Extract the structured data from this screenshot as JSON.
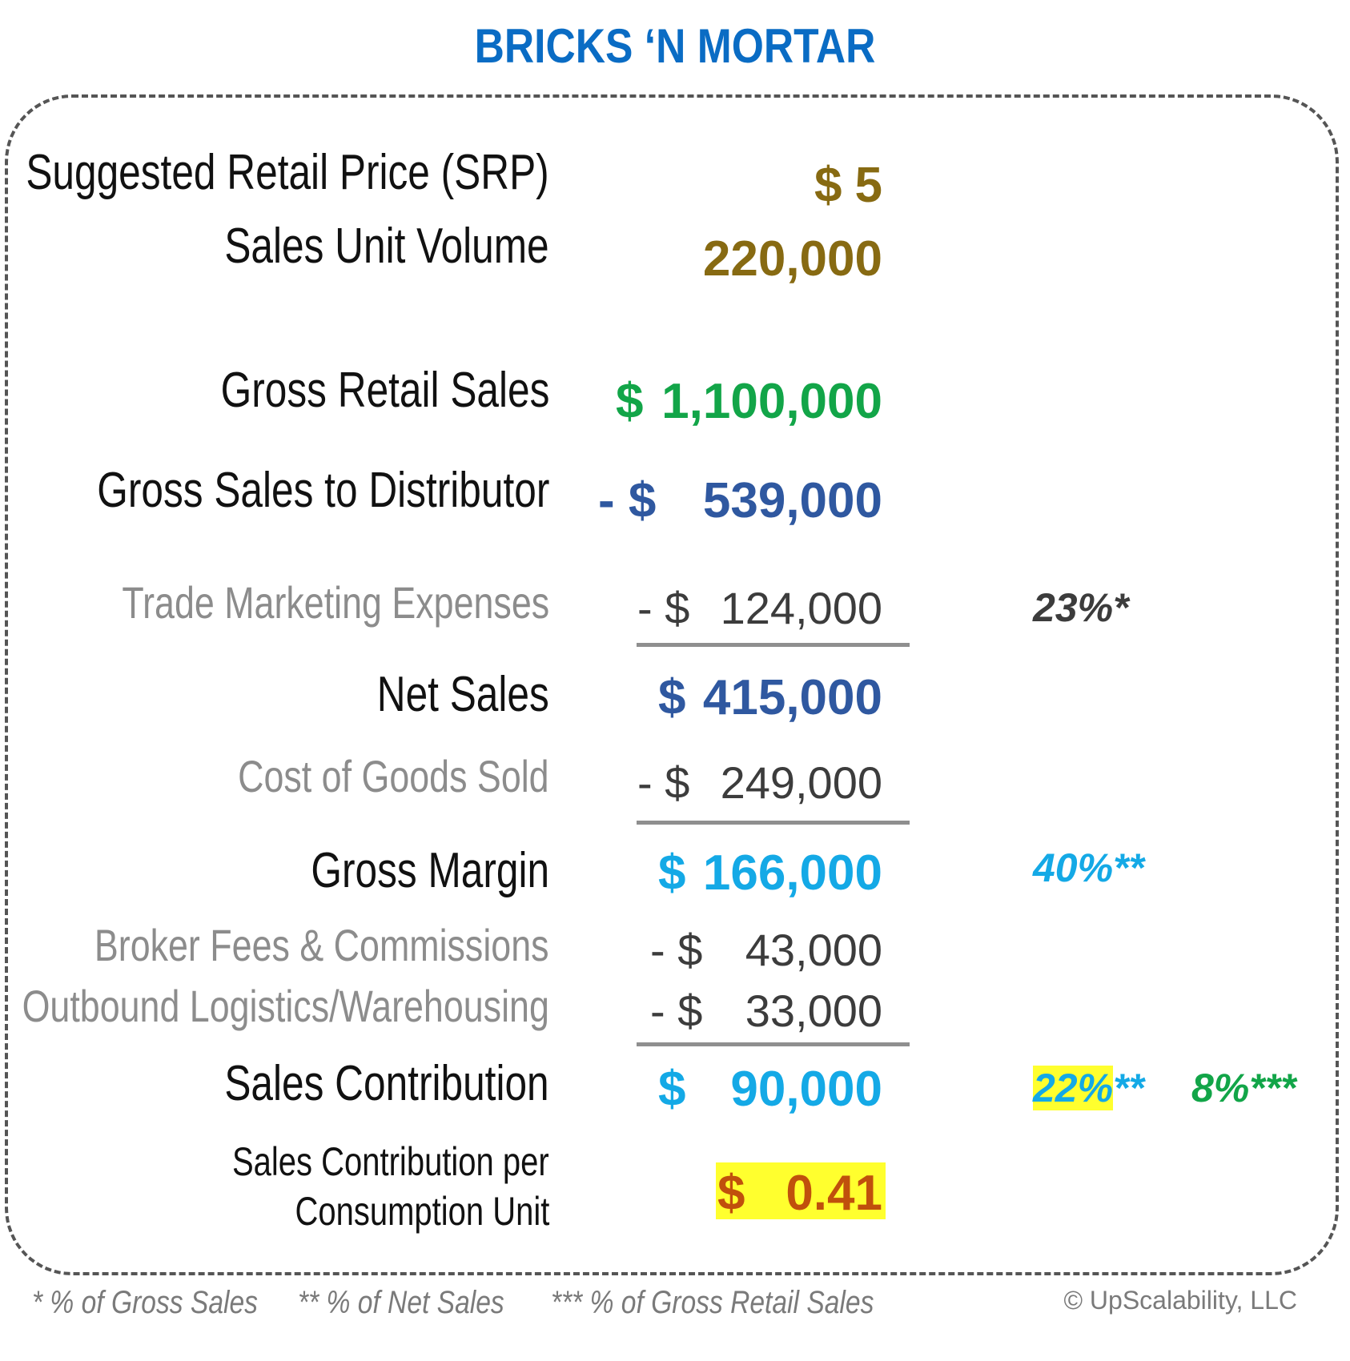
{
  "title": "BRICKS ‘N MORTAR",
  "rows": {
    "srp": {
      "label": "Suggested Retail Price (SRP)",
      "symbol": "$",
      "amount": "5"
    },
    "volume": {
      "label": "Sales Unit Volume",
      "amount": "220,000"
    },
    "gross_retail": {
      "label": "Gross Retail Sales",
      "symbol": "$",
      "amount": "1,100,000"
    },
    "gross_dist": {
      "label": "Gross Sales to Distributor",
      "symbol": "- $",
      "amount": "539,000"
    },
    "trade_mkt": {
      "label": "Trade Marketing Expenses",
      "symbol": "- $",
      "amount": "124,000",
      "pct": "23%*"
    },
    "net_sales": {
      "label": "Net Sales",
      "symbol": "$",
      "amount": "415,000"
    },
    "cogs": {
      "label": "Cost of Goods Sold",
      "symbol": "- $",
      "amount": "249,000"
    },
    "gross_margin": {
      "label": "Gross Margin",
      "symbol": "$",
      "amount": "166,000",
      "pct": "40%**"
    },
    "broker": {
      "label": "Broker Fees & Commissions",
      "symbol": "- $",
      "amount": "43,000"
    },
    "logistics": {
      "label": "Outbound Logistics/Warehousing",
      "symbol": "- $",
      "amount": "33,000"
    },
    "contribution": {
      "label": "Sales Contribution",
      "symbol": "$",
      "amount": "90,000",
      "pct_value": "22%",
      "pct_marker": "**",
      "pct2": "8%***"
    },
    "per_unit": {
      "label_line1": "Sales Contribution per",
      "label_line2": "Consumption Unit",
      "symbol": "$",
      "amount": "0.41"
    }
  },
  "footnotes": {
    "one": "* % of Gross Sales",
    "two": "** % of Net Sales",
    "three": "*** % of Gross Retail Sales"
  },
  "copyright": "© UpScalability, LLC",
  "colors": {
    "title": "#0a6cc4",
    "olive": "#876a12",
    "green": "#12a548",
    "navy": "#2f58a0",
    "cyan": "#14a9e6",
    "rust": "#c0500c",
    "highlight": "#ffff2e"
  }
}
